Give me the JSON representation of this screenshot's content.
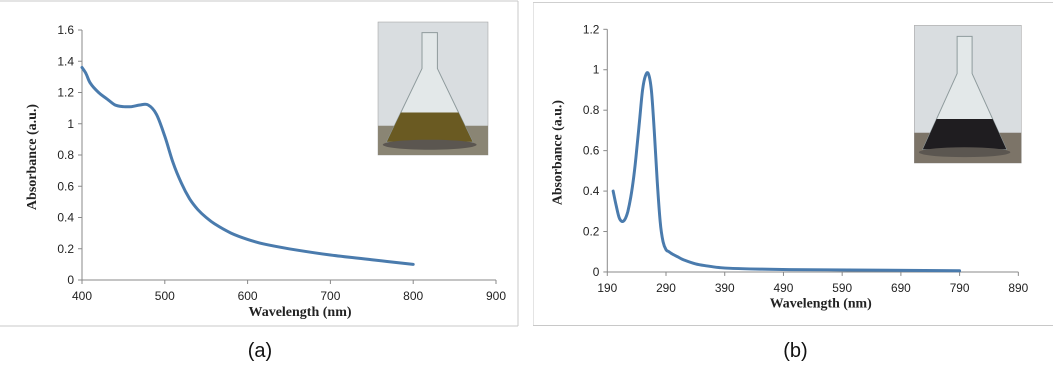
{
  "colors": {
    "line": "#4a7bad",
    "axis": "#888888",
    "frame": "#c8c8c8",
    "text": "#222222"
  },
  "captions": [
    "(a)",
    "(b)"
  ],
  "chart_data": [
    {
      "type": "line",
      "title": "",
      "xlabel": "Wavelength (nm)",
      "ylabel": "Absorbance (a.u.)",
      "xlim": [
        400,
        900
      ],
      "ylim": [
        0,
        1.6
      ],
      "xticks": [
        "400",
        "500",
        "600",
        "700",
        "800",
        "900"
      ],
      "yticks": [
        "0",
        "0.2",
        "0.4",
        "0.6",
        "0.8",
        "1",
        "1.2",
        "1.4",
        "1.6"
      ],
      "grid": false,
      "legend": "none",
      "inset": "photo of conical flask with light brown solution",
      "series": [
        {
          "x": [
            400,
            405,
            410,
            420,
            430,
            440,
            450,
            460,
            470,
            480,
            490,
            500,
            510,
            520,
            530,
            540,
            550,
            560,
            580,
            600,
            620,
            650,
            700,
            750,
            800
          ],
          "values": [
            1.36,
            1.32,
            1.26,
            1.2,
            1.16,
            1.12,
            1.11,
            1.11,
            1.12,
            1.12,
            1.06,
            0.92,
            0.75,
            0.62,
            0.52,
            0.45,
            0.4,
            0.36,
            0.3,
            0.26,
            0.23,
            0.2,
            0.16,
            0.13,
            0.1
          ]
        }
      ]
    },
    {
      "type": "line",
      "title": "",
      "xlabel": "Wavelength (nm)",
      "ylabel": "Absorbance (a.u.)",
      "xlim": [
        190,
        890
      ],
      "ylim": [
        0,
        1.2
      ],
      "xticks": [
        "190",
        "290",
        "390",
        "490",
        "590",
        "690",
        "790",
        "890"
      ],
      "yticks": [
        "0",
        "0.2",
        "0.4",
        "0.6",
        "0.8",
        "1",
        "1.2"
      ],
      "grid": false,
      "legend": "none",
      "inset": "photo of flask with dark solution on hot plate",
      "series": [
        {
          "x": [
            200,
            205,
            210,
            215,
            220,
            225,
            230,
            235,
            240,
            245,
            250,
            255,
            260,
            265,
            270,
            275,
            280,
            285,
            290,
            295,
            300,
            310,
            320,
            340,
            360,
            380,
            400,
            450,
            500,
            600,
            700,
            790
          ],
          "values": [
            0.4,
            0.33,
            0.27,
            0.25,
            0.26,
            0.3,
            0.37,
            0.47,
            0.6,
            0.75,
            0.9,
            0.97,
            0.98,
            0.9,
            0.7,
            0.45,
            0.25,
            0.15,
            0.11,
            0.1,
            0.09,
            0.075,
            0.06,
            0.04,
            0.03,
            0.022,
            0.018,
            0.014,
            0.012,
            0.01,
            0.008,
            0.006
          ]
        }
      ]
    }
  ]
}
